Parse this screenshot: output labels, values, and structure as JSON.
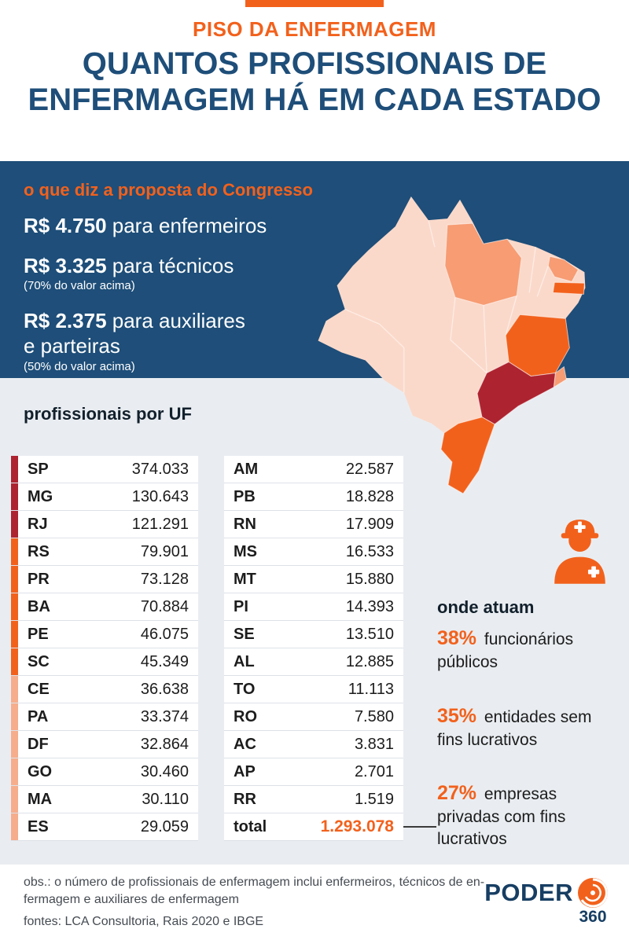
{
  "colors": {
    "navy": "#1e4e79",
    "orange": "#f2611c",
    "dark_red": "#ae2330",
    "bg_light": "#e9edf1",
    "map_tiers": {
      "pale": "#fbd9ca",
      "medium": "#f79c73",
      "orange": "#f2611c",
      "dark": "#ae2330"
    },
    "bar_tiers": {
      "dark": "#ae2330",
      "orange": "#f2611c",
      "peach": "#f6ad8c"
    }
  },
  "header": {
    "kicker": "PISO DA ENFERMAGEM",
    "title_line1": "QUANTOS PROFISSIONAIS DE",
    "title_line2": "ENFERMAGEM HÁ EM CADA ESTADO"
  },
  "proposal": {
    "heading": "o que diz a proposta do Congresso",
    "items": [
      {
        "value": "R$ 4.750",
        "text": "para enfermeiros",
        "note": ""
      },
      {
        "value": "R$ 3.325",
        "text": "para técnicos",
        "note": "(70% do valor acima)"
      },
      {
        "value": "R$ 2.375",
        "text": "para auxiliares\ne parteiras",
        "note": "(50% do valor acima)"
      }
    ]
  },
  "table": {
    "heading": "profissionais por UF",
    "left_rows": [
      {
        "uf": "SP",
        "value": "374.033",
        "tier": "dark"
      },
      {
        "uf": "MG",
        "value": "130.643",
        "tier": "dark"
      },
      {
        "uf": "RJ",
        "value": "121.291",
        "tier": "dark"
      },
      {
        "uf": "RS",
        "value": "79.901",
        "tier": "orange"
      },
      {
        "uf": "PR",
        "value": "73.128",
        "tier": "orange"
      },
      {
        "uf": "BA",
        "value": "70.884",
        "tier": "orange"
      },
      {
        "uf": "PE",
        "value": "46.075",
        "tier": "orange"
      },
      {
        "uf": "SC",
        "value": "45.349",
        "tier": "orange"
      },
      {
        "uf": "CE",
        "value": "36.638",
        "tier": "peach"
      },
      {
        "uf": "PA",
        "value": "33.374",
        "tier": "peach"
      },
      {
        "uf": "DF",
        "value": "32.864",
        "tier": "peach"
      },
      {
        "uf": "GO",
        "value": "30.460",
        "tier": "peach"
      },
      {
        "uf": "MA",
        "value": "30.110",
        "tier": "peach"
      },
      {
        "uf": "ES",
        "value": "29.059",
        "tier": "peach"
      }
    ],
    "right_rows": [
      {
        "uf": "AM",
        "value": "22.587"
      },
      {
        "uf": "PB",
        "value": "18.828"
      },
      {
        "uf": "RN",
        "value": "17.909"
      },
      {
        "uf": "MS",
        "value": "16.533"
      },
      {
        "uf": "MT",
        "value": "15.880"
      },
      {
        "uf": "PI",
        "value": "14.393"
      },
      {
        "uf": "SE",
        "value": "13.510"
      },
      {
        "uf": "AL",
        "value": "12.885"
      },
      {
        "uf": "TO",
        "value": "11.113"
      },
      {
        "uf": "RO",
        "value": "7.580"
      },
      {
        "uf": "AC",
        "value": "3.831"
      },
      {
        "uf": "AP",
        "value": "2.701"
      },
      {
        "uf": "RR",
        "value": "1.519"
      }
    ],
    "total": {
      "label": "total",
      "value": "1.293.078"
    }
  },
  "where": {
    "heading": "onde atuam",
    "items": [
      {
        "pct": "38%",
        "text": "funcionários públicos"
      },
      {
        "pct": "35%",
        "text": "entidades sem fins lucrativos"
      },
      {
        "pct": "27%",
        "text": "empresas privadas com fins lucrativos"
      }
    ]
  },
  "footer": {
    "obs_line1": "obs.: o número de profissionais de enfermagem inclui enfermeiros, técnicos de en-",
    "obs_line2": "fermagem e auxiliares de enfermagem",
    "fontes": "fontes: LCA Consultoria, Rais 2020 e IBGE",
    "logo_poder": "PODER",
    "logo_360": "360"
  },
  "chart_data": {
    "type": "table",
    "title": "profissionais por UF",
    "subtitle": "QUANTOS PROFISSIONAIS DE ENFERMAGEM HÁ EM CADA ESTADO",
    "columns": [
      "UF",
      "profissionais"
    ],
    "rows": [
      [
        "SP",
        374033
      ],
      [
        "MG",
        130643
      ],
      [
        "RJ",
        121291
      ],
      [
        "RS",
        79901
      ],
      [
        "PR",
        73128
      ],
      [
        "BA",
        70884
      ],
      [
        "PE",
        46075
      ],
      [
        "SC",
        45349
      ],
      [
        "CE",
        36638
      ],
      [
        "PA",
        33374
      ],
      [
        "DF",
        32864
      ],
      [
        "GO",
        30460
      ],
      [
        "MA",
        30110
      ],
      [
        "ES",
        29059
      ],
      [
        "AM",
        22587
      ],
      [
        "PB",
        18828
      ],
      [
        "RN",
        17909
      ],
      [
        "MS",
        16533
      ],
      [
        "MT",
        15880
      ],
      [
        "PI",
        14393
      ],
      [
        "SE",
        13510
      ],
      [
        "AL",
        12885
      ],
      [
        "TO",
        11113
      ],
      [
        "RO",
        7580
      ],
      [
        "AC",
        3831
      ],
      [
        "AP",
        2701
      ],
      [
        "RR",
        1519
      ]
    ],
    "total": 1293078,
    "map": {
      "type": "choropleth",
      "region": "Brazil by state",
      "tier_colors": {
        "dark": ">100k",
        "orange": "~45k-80k",
        "medium": "~33k-37k",
        "pale": "<33k"
      }
    },
    "proposal": [
      {
        "role": "enfermeiros",
        "value_brl": 4750
      },
      {
        "role": "técnicos",
        "value_brl": 3325,
        "note": "70% do valor acima"
      },
      {
        "role": "auxiliares e parteiras",
        "value_brl": 2375,
        "note": "50% do valor acima"
      }
    ],
    "where_they_work": [
      {
        "label": "funcionários públicos",
        "pct": 38
      },
      {
        "label": "entidades sem fins lucrativos",
        "pct": 35
      },
      {
        "label": "empresas privadas com fins lucrativos",
        "pct": 27
      }
    ]
  }
}
